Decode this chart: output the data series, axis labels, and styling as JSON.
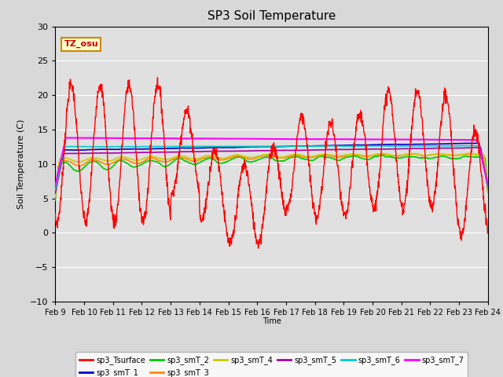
{
  "title": "SP3 Soil Temperature",
  "xlabel": "Time",
  "ylabel": "Soil Temperature (C)",
  "ylim": [
    -10,
    30
  ],
  "fig_bg_color": "#d8d8d8",
  "plot_bg_color": "#e0e0e0",
  "tz_label": "TZ_osu",
  "x_tick_labels": [
    "Feb 9",
    "Feb 10",
    "Feb 11",
    "Feb 12",
    "Feb 13",
    "Feb 14",
    "Feb 15",
    "Feb 16",
    "Feb 17",
    "Feb 18",
    "Feb 19",
    "Feb 20",
    "Feb 21",
    "Feb 22",
    "Feb 23",
    "Feb 24"
  ],
  "yticks": [
    -10,
    -5,
    0,
    5,
    10,
    15,
    20,
    25,
    30
  ],
  "legend_entries": [
    {
      "label": "sp3_Tsurface",
      "color": "#ff0000"
    },
    {
      "label": "sp3_smT_1",
      "color": "#0000cc"
    },
    {
      "label": "sp3_smT_2",
      "color": "#00cc00"
    },
    {
      "label": "sp3_smT_3",
      "color": "#ff8800"
    },
    {
      "label": "sp3_smT_4",
      "color": "#cccc00"
    },
    {
      "label": "sp3_smT_5",
      "color": "#aa00aa"
    },
    {
      "label": "sp3_smT_6",
      "color": "#00cccc"
    },
    {
      "label": "sp3_smT_7",
      "color": "#ff00ff"
    }
  ],
  "n_days": 15,
  "pts_per_day": 96
}
